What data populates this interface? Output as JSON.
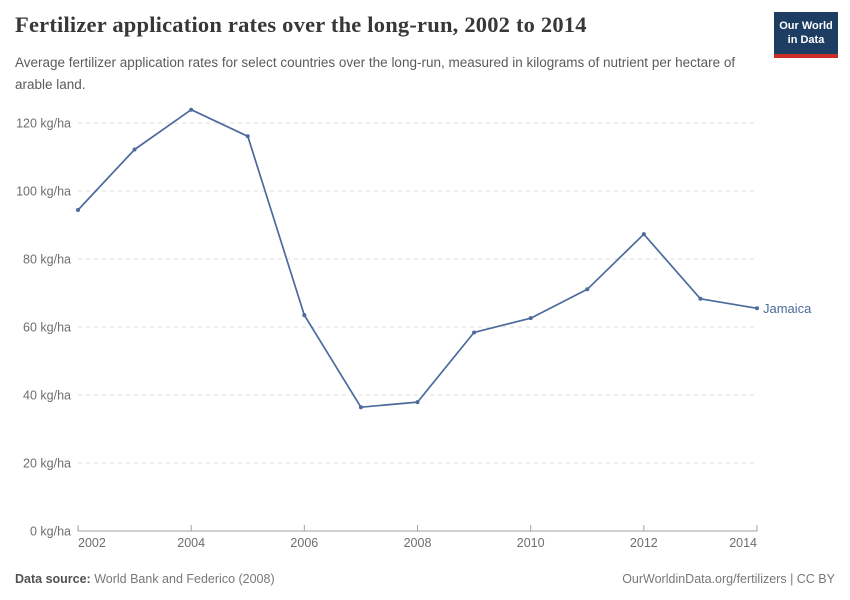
{
  "header": {
    "title": "Fertilizer application rates over the long-run, 2002 to 2014",
    "subtitle": "Average fertilizer application rates for select countries over the long-run, measured in kilograms of nutrient per hectare of arable land.",
    "logo": {
      "line1": "Our World",
      "line2": "in Data"
    }
  },
  "chart_data": {
    "type": "line",
    "title": "Fertilizer application rates over the long-run, 2002 to 2014",
    "xlabel": "",
    "ylabel": "kg/ha",
    "unit_suffix": " kg/ha",
    "x": [
      2002,
      2003,
      2004,
      2005,
      2006,
      2007,
      2008,
      2009,
      2010,
      2011,
      2012,
      2013,
      2014
    ],
    "series": [
      {
        "name": "Jamaica",
        "color": "#4C6A9C",
        "values": [
          94.4,
          112.2,
          123.9,
          116.1,
          63.5,
          36.4,
          37.9,
          58.4,
          62.6,
          71.1,
          87.3,
          68.3,
          65.5
        ]
      }
    ],
    "yticks": [
      0,
      20,
      40,
      60,
      80,
      100,
      120
    ],
    "xticks": [
      2002,
      2004,
      2006,
      2008,
      2010,
      2012,
      2014
    ],
    "ylim": [
      0,
      128
    ],
    "grid": true,
    "grid_style": "dashed",
    "legend_position": "end-of-line-label",
    "colors": {
      "gridline": "#dedede",
      "axis": "#a1a1a1",
      "tick_label": "#6e6e6e"
    }
  },
  "footer": {
    "source_label": "Data source:",
    "source_value": " World Bank and Federico (2008)",
    "link": "OurWorldinData.org/fertilizers | CC BY"
  }
}
